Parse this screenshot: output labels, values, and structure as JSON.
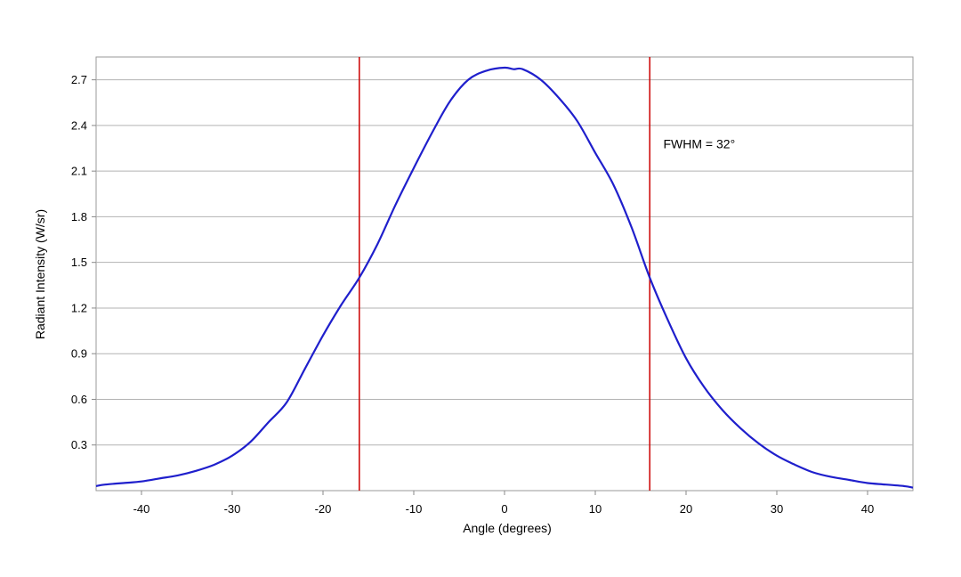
{
  "chart_data": {
    "type": "line",
    "title": "",
    "xlabel": "Angle (degrees)",
    "ylabel": "Radiant Intensity (W/sr)",
    "xlim": [
      -45,
      45
    ],
    "ylim": [
      0,
      2.85
    ],
    "xticks": [
      -40,
      -30,
      -20,
      -10,
      0,
      10,
      20,
      30,
      40
    ],
    "xtick_labels": [
      "-40",
      "-30",
      "-20",
      "-10",
      "0",
      "10",
      "20",
      "30",
      "40"
    ],
    "yticks": [
      0.3,
      0.6,
      0.9,
      1.2,
      1.5,
      1.8,
      2.1,
      2.4,
      2.7
    ],
    "ytick_labels": [
      "0.3",
      "0.6",
      "0.9",
      "1.2",
      "1.5",
      "1.8",
      "2.1",
      "2.4",
      "2.7"
    ],
    "grid": "horizontal",
    "series": [
      {
        "color": "#1f1fcc",
        "x": [
          -45,
          -44,
          -42,
          -40,
          -38,
          -36,
          -34,
          -32,
          -30,
          -28,
          -26,
          -24,
          -22,
          -20,
          -18,
          -16,
          -14,
          -12,
          -10,
          -8,
          -6,
          -4,
          -2,
          0,
          1,
          2,
          4,
          6,
          8,
          10,
          12,
          14,
          16,
          18,
          20,
          22,
          24,
          26,
          28,
          30,
          32,
          34,
          36,
          38,
          40,
          42,
          44,
          45
        ],
        "y": [
          0.03,
          0.04,
          0.05,
          0.06,
          0.08,
          0.1,
          0.13,
          0.17,
          0.23,
          0.32,
          0.45,
          0.58,
          0.8,
          1.02,
          1.22,
          1.4,
          1.62,
          1.88,
          2.12,
          2.35,
          2.56,
          2.7,
          2.76,
          2.78,
          2.77,
          2.77,
          2.7,
          2.58,
          2.43,
          2.22,
          2.01,
          1.73,
          1.4,
          1.12,
          0.87,
          0.68,
          0.53,
          0.41,
          0.31,
          0.23,
          0.17,
          0.12,
          0.09,
          0.07,
          0.05,
          0.04,
          0.03,
          0.02
        ]
      }
    ],
    "vlines": [
      {
        "x": -16,
        "color": "#cc0000"
      },
      {
        "x": 16,
        "color": "#cc0000"
      }
    ],
    "annotation": {
      "text": "FWHM = 32°",
      "x": 17.5,
      "y": 2.25
    }
  }
}
